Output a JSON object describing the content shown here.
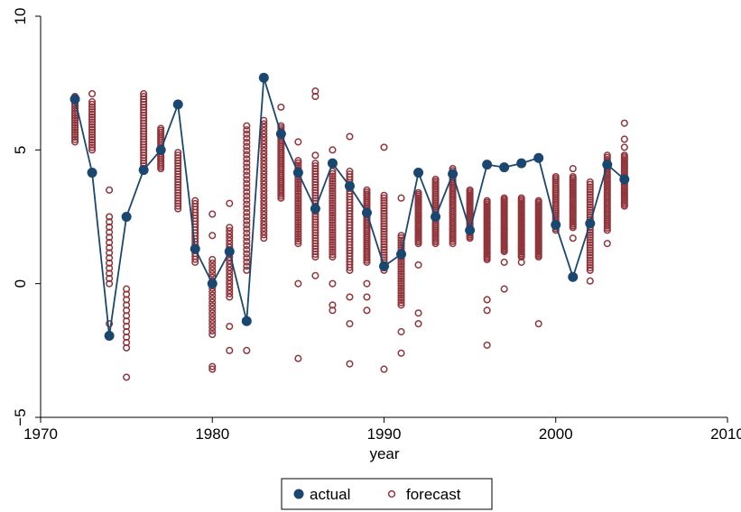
{
  "chart_data": {
    "type": "scatter",
    "title": "",
    "xlabel": "year",
    "ylabel": "",
    "xlim": [
      1970,
      2010
    ],
    "ylim": [
      -5,
      10
    ],
    "x_ticks": [
      1970,
      1980,
      1990,
      2000,
      2010
    ],
    "y_ticks": [
      -5,
      0,
      5,
      10
    ],
    "x_tick_labels": [
      "1970",
      "1980",
      "1990",
      "2000",
      "2010"
    ],
    "y_tick_labels": [
      "−5",
      "0",
      "5",
      "10"
    ],
    "grid": false,
    "legend_position": "bottom",
    "colors": {
      "actual": "#1a476f",
      "forecast": "#90353b",
      "axis": "#000000",
      "background": "#ffffff"
    },
    "series": [
      {
        "name": "actual",
        "mark": "filled-circle-with-line",
        "x": [
          1972,
          1973,
          1974,
          1975,
          1976,
          1977,
          1978,
          1979,
          1980,
          1981,
          1982,
          1983,
          1984,
          1985,
          1986,
          1987,
          1988,
          1989,
          1990,
          1991,
          1992,
          1993,
          1994,
          1995,
          1996,
          1997,
          1998,
          1999,
          2000,
          2001,
          2002,
          2003,
          2004
        ],
        "y": [
          6.9,
          4.15,
          -1.95,
          2.5,
          4.25,
          5.0,
          6.7,
          1.3,
          0.0,
          1.2,
          -1.4,
          7.7,
          5.6,
          4.15,
          2.8,
          4.5,
          3.65,
          2.65,
          0.65,
          1.1,
          4.15,
          2.5,
          4.1,
          2.0,
          4.45,
          4.35,
          4.5,
          4.7,
          2.2,
          0.25,
          2.25,
          4.45,
          3.9
        ]
      },
      {
        "name": "forecast",
        "mark": "hollow-circle",
        "ranges": [
          {
            "x": 1972,
            "min": 5.3,
            "max": 7.0,
            "n": 20,
            "extra": []
          },
          {
            "x": 1973,
            "min": 5.0,
            "max": 6.8,
            "n": 20,
            "extra": [
              7.1
            ]
          },
          {
            "x": 1974,
            "min": 0.0,
            "max": 2.5,
            "n": 14,
            "extra": [
              3.5,
              -1.5
            ]
          },
          {
            "x": 1975,
            "min": -2.4,
            "max": -0.2,
            "n": 12,
            "extra": [
              -3.5
            ]
          },
          {
            "x": 1976,
            "min": 4.2,
            "max": 7.1,
            "n": 30,
            "extra": []
          },
          {
            "x": 1977,
            "min": 4.3,
            "max": 5.8,
            "n": 22,
            "extra": []
          },
          {
            "x": 1978,
            "min": 2.8,
            "max": 4.9,
            "n": 22,
            "extra": []
          },
          {
            "x": 1979,
            "min": 0.8,
            "max": 3.1,
            "n": 22,
            "extra": []
          },
          {
            "x": 1980,
            "min": -1.9,
            "max": 0.9,
            "n": 22,
            "extra": [
              1.8,
              2.6,
              -3.1,
              -3.2
            ]
          },
          {
            "x": 1981,
            "min": -0.5,
            "max": 2.1,
            "n": 22,
            "extra": [
              3.0,
              -1.6,
              -2.5
            ]
          },
          {
            "x": 1982,
            "min": 0.5,
            "max": 5.9,
            "n": 36,
            "extra": [
              -2.5
            ]
          },
          {
            "x": 1983,
            "min": 1.7,
            "max": 6.1,
            "n": 36,
            "extra": []
          },
          {
            "x": 1984,
            "min": 3.2,
            "max": 5.9,
            "n": 36,
            "extra": [
              6.6
            ]
          },
          {
            "x": 1985,
            "min": 1.5,
            "max": 4.6,
            "n": 36,
            "extra": [
              5.3,
              0.0,
              -2.8
            ]
          },
          {
            "x": 1986,
            "min": 1.0,
            "max": 4.5,
            "n": 36,
            "extra": [
              7.0,
              7.2,
              4.8,
              0.3
            ]
          },
          {
            "x": 1987,
            "min": 1.0,
            "max": 4.2,
            "n": 36,
            "extra": [
              5.0,
              0.0,
              -0.8,
              -1.0
            ]
          },
          {
            "x": 1988,
            "min": 0.5,
            "max": 4.2,
            "n": 36,
            "extra": [
              5.5,
              -0.5,
              -1.5,
              -3.0
            ]
          },
          {
            "x": 1989,
            "min": 0.8,
            "max": 3.5,
            "n": 36,
            "extra": [
              0.0,
              -0.5,
              -1.0
            ]
          },
          {
            "x": 1990,
            "min": 0.5,
            "max": 3.3,
            "n": 30,
            "extra": [
              5.1,
              -3.2
            ]
          },
          {
            "x": 1991,
            "min": -0.8,
            "max": 1.8,
            "n": 30,
            "extra": [
              3.2,
              -1.8,
              -2.6
            ]
          },
          {
            "x": 1992,
            "min": 1.5,
            "max": 3.4,
            "n": 30,
            "extra": [
              0.7,
              -1.1,
              -1.5
            ]
          },
          {
            "x": 1993,
            "min": 1.5,
            "max": 3.9,
            "n": 36,
            "extra": []
          },
          {
            "x": 1994,
            "min": 1.5,
            "max": 4.3,
            "n": 36,
            "extra": []
          },
          {
            "x": 1995,
            "min": 1.7,
            "max": 3.5,
            "n": 30,
            "extra": []
          },
          {
            "x": 1996,
            "min": 0.9,
            "max": 3.1,
            "n": 36,
            "extra": [
              -0.6,
              -1.0,
              -2.3
            ]
          },
          {
            "x": 1997,
            "min": 1.2,
            "max": 3.2,
            "n": 36,
            "extra": [
              0.8,
              -0.2
            ]
          },
          {
            "x": 1998,
            "min": 1.0,
            "max": 3.2,
            "n": 36,
            "extra": [
              0.8
            ]
          },
          {
            "x": 1999,
            "min": 1.0,
            "max": 3.1,
            "n": 36,
            "extra": [
              -1.5
            ]
          },
          {
            "x": 2000,
            "min": 2.0,
            "max": 4.0,
            "n": 30,
            "extra": []
          },
          {
            "x": 2001,
            "min": 2.1,
            "max": 4.0,
            "n": 30,
            "extra": [
              4.3,
              1.7
            ]
          },
          {
            "x": 2002,
            "min": 0.5,
            "max": 3.8,
            "n": 36,
            "extra": [
              0.1
            ]
          },
          {
            "x": 2003,
            "min": 2.0,
            "max": 4.8,
            "n": 36,
            "extra": [
              1.5
            ]
          },
          {
            "x": 2004,
            "min": 2.9,
            "max": 4.8,
            "n": 30,
            "extra": [
              6.0,
              5.4,
              5.1
            ]
          }
        ]
      }
    ],
    "legend": [
      {
        "name": "actual",
        "label": "actual"
      },
      {
        "name": "forecast",
        "label": "forecast"
      }
    ]
  }
}
